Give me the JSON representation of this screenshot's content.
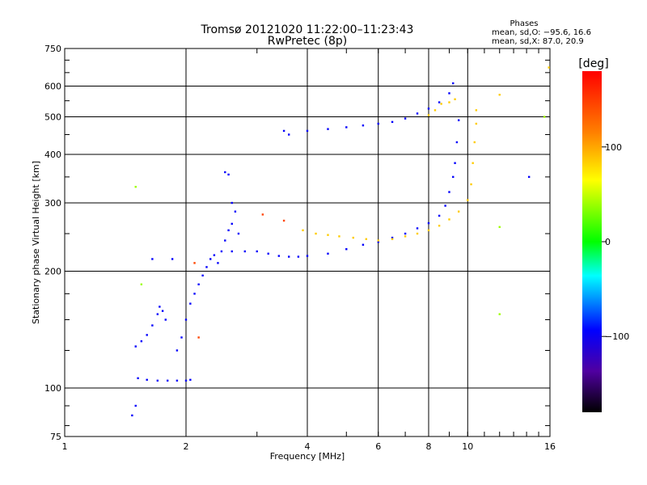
{
  "chart_data": {
    "type": "scatter",
    "title": "Tromsø 20121020 11:22:00–11:23:43",
    "subtitle": "RwPretec (8p)",
    "xlabel": "Frequency [MHz]",
    "ylabel": "Stationary phase Virtual Height [km]",
    "xscale": "log",
    "yscale": "log",
    "xlim": [
      1,
      16
    ],
    "ylim": [
      75,
      750
    ],
    "xticks": [
      1,
      2,
      4,
      6,
      8,
      10,
      16
    ],
    "xtick_labels": [
      "1",
      "2",
      "4",
      "6",
      "8",
      "10",
      "16"
    ],
    "yticks": [
      75,
      100,
      200,
      300,
      400,
      500,
      600,
      750
    ],
    "ytick_labels": [
      "75",
      "100",
      "200",
      "300",
      "400",
      "500",
      "600",
      "750"
    ],
    "grid": true,
    "phase_stats": {
      "title": "Phases",
      "line_o": "mean, sd,O: −95.6, 16.6",
      "line_x": "mean, sd,X:  87.0, 20.9"
    },
    "colorbar": {
      "label": "[deg]",
      "range": [
        -180,
        180
      ],
      "ticks": [
        100,
        0,
        -100
      ],
      "tick_labels": [
        "100",
        "0",
        "−100"
      ],
      "colors": [
        "#ff0000",
        "#ff8000",
        "#ffff00",
        "#00ff00",
        "#00ffff",
        "#0000ff",
        "#5000a0",
        "#000000"
      ]
    },
    "series": [
      {
        "phase": -95,
        "points": [
          [
            1.52,
            106
          ],
          [
            1.6,
            105
          ],
          [
            1.7,
            104.5
          ],
          [
            1.8,
            104.5
          ],
          [
            1.9,
            104.5
          ],
          [
            2.0,
            104.5
          ],
          [
            2.05,
            105
          ],
          [
            1.5,
            128
          ],
          [
            1.55,
            132
          ],
          [
            1.6,
            137
          ],
          [
            1.65,
            145
          ],
          [
            1.7,
            155
          ],
          [
            1.72,
            162
          ],
          [
            1.75,
            158
          ],
          [
            1.78,
            150
          ],
          [
            1.9,
            125
          ],
          [
            1.95,
            135
          ],
          [
            2.0,
            150
          ],
          [
            2.05,
            165
          ],
          [
            2.1,
            175
          ],
          [
            2.15,
            185
          ],
          [
            2.2,
            195
          ],
          [
            2.25,
            205
          ],
          [
            2.3,
            215
          ],
          [
            2.35,
            220
          ],
          [
            2.4,
            210
          ],
          [
            2.45,
            225
          ],
          [
            2.5,
            240
          ],
          [
            2.55,
            255
          ],
          [
            2.6,
            265
          ],
          [
            2.65,
            285
          ],
          [
            2.7,
            250
          ],
          [
            2.5,
            360
          ],
          [
            2.55,
            355
          ],
          [
            2.6,
            300
          ],
          [
            2.6,
            225
          ],
          [
            2.8,
            225
          ],
          [
            3.0,
            225
          ],
          [
            3.2,
            222
          ],
          [
            3.4,
            219
          ],
          [
            3.6,
            218
          ],
          [
            3.8,
            218
          ],
          [
            4.0,
            219
          ],
          [
            4.5,
            222
          ],
          [
            5.0,
            228
          ],
          [
            5.5,
            234
          ],
          [
            6.0,
            238
          ],
          [
            6.5,
            244
          ],
          [
            7.0,
            250
          ],
          [
            7.5,
            258
          ],
          [
            8.0,
            266
          ],
          [
            8.5,
            278
          ],
          [
            8.8,
            295
          ],
          [
            9.0,
            320
          ],
          [
            9.2,
            350
          ],
          [
            9.3,
            380
          ],
          [
            9.4,
            430
          ],
          [
            9.5,
            490
          ],
          [
            3.5,
            460
          ],
          [
            3.6,
            450
          ],
          [
            4.0,
            460
          ],
          [
            4.5,
            465
          ],
          [
            5.0,
            470
          ],
          [
            5.5,
            475
          ],
          [
            6.0,
            480
          ],
          [
            6.5,
            485
          ],
          [
            7.0,
            495
          ],
          [
            7.5,
            510
          ],
          [
            8.0,
            525
          ],
          [
            8.5,
            545
          ],
          [
            9.0,
            575
          ],
          [
            9.2,
            610
          ],
          [
            1.5,
            90
          ],
          [
            1.47,
            85
          ],
          [
            1.65,
            215
          ],
          [
            1.85,
            215
          ],
          [
            14.2,
            350
          ]
        ]
      },
      {
        "phase": 85,
        "points": [
          [
            3.9,
            255
          ],
          [
            4.2,
            250
          ],
          [
            4.5,
            248
          ],
          [
            4.8,
            246
          ],
          [
            5.2,
            244
          ],
          [
            5.6,
            242
          ],
          [
            6.0,
            240
          ],
          [
            6.5,
            242
          ],
          [
            7.0,
            246
          ],
          [
            7.5,
            250
          ],
          [
            8.0,
            255
          ],
          [
            8.5,
            262
          ],
          [
            9.0,
            272
          ],
          [
            9.5,
            285
          ],
          [
            10.0,
            305
          ],
          [
            10.2,
            335
          ],
          [
            10.3,
            380
          ],
          [
            10.4,
            430
          ],
          [
            10.5,
            480
          ],
          [
            10.5,
            520
          ],
          [
            8.0,
            505
          ],
          [
            8.3,
            520
          ],
          [
            8.6,
            540
          ],
          [
            9.0,
            545
          ],
          [
            9.3,
            555
          ],
          [
            12.0,
            570
          ],
          [
            15.9,
            670
          ]
        ]
      },
      {
        "phase": 40,
        "points": [
          [
            1.5,
            330
          ],
          [
            1.55,
            185
          ],
          [
            12.0,
            260
          ],
          [
            12.0,
            155
          ],
          [
            15.5,
            500
          ]
        ]
      },
      {
        "phase": 145,
        "points": [
          [
            3.5,
            270
          ],
          [
            2.1,
            210
          ],
          [
            2.15,
            135
          ],
          [
            3.1,
            280
          ]
        ]
      }
    ]
  }
}
